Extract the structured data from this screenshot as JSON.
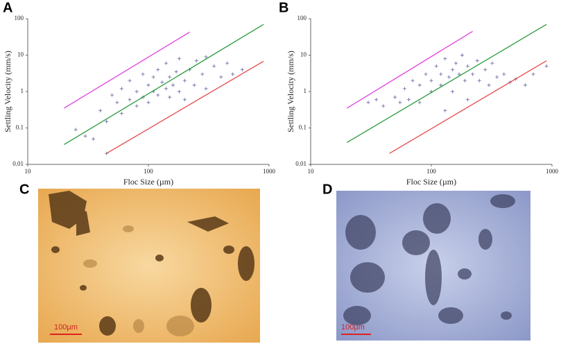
{
  "panels": [
    "A",
    "B",
    "C",
    "D"
  ],
  "scale_bars": [
    "100µm",
    "100µm"
  ],
  "chart_data": [
    {
      "type": "scatter",
      "xlabel": "Floc Size (µm)",
      "ylabel": "Settling Velocity (mm/s)",
      "xlim": [
        10,
        1000
      ],
      "ylim": [
        0.01,
        100
      ],
      "xticks": [
        10,
        100,
        1000
      ],
      "yticks": [
        0.01,
        0.1,
        1,
        10,
        100
      ],
      "log_x": true,
      "log_y": true,
      "marker": "+",
      "series": [
        {
          "color": "#7070a8",
          "x": [
            40,
            45,
            50,
            55,
            60,
            60,
            70,
            70,
            80,
            80,
            90,
            90,
            100,
            100,
            110,
            110,
            120,
            120,
            130,
            140,
            140,
            150,
            150,
            160,
            170,
            180,
            180,
            200,
            200,
            220,
            240,
            250,
            280,
            300,
            300,
            350,
            400,
            450,
            500,
            600,
            35,
            45,
            30,
            25
          ],
          "values": [
            0.3,
            0.15,
            0.8,
            0.5,
            0.25,
            1.2,
            0.6,
            2,
            1,
            0.4,
            3,
            0.7,
            1.5,
            0.5,
            2.5,
            1,
            4,
            0.8,
            1.8,
            6,
            1.2,
            2.5,
            0.7,
            1.5,
            3.5,
            1,
            8,
            2,
            0.6,
            4,
            1.5,
            7,
            3,
            9,
            1.2,
            5,
            2.5,
            6,
            3,
            4,
            0.05,
            0.02,
            0.06,
            0.09
          ]
        }
      ],
      "lines": [
        {
          "color": "#e040e0",
          "x": [
            20,
            220
          ],
          "values": [
            0.35,
            43
          ]
        },
        {
          "color": "#2a9a3a",
          "x": [
            20,
            900
          ],
          "values": [
            0.035,
            70
          ]
        },
        {
          "color": "#e84848",
          "x": [
            45,
            900
          ],
          "values": [
            0.02,
            6.8
          ]
        }
      ]
    },
    {
      "type": "scatter",
      "xlabel": "Floc Size (µm)",
      "ylabel": "Settling Velocity (mm/s)",
      "xlim": [
        10,
        1000
      ],
      "ylim": [
        0.01,
        100
      ],
      "xticks": [
        10,
        100,
        1000
      ],
      "yticks": [
        0.01,
        0.1,
        1,
        10,
        100
      ],
      "log_x": true,
      "log_y": true,
      "marker": "+",
      "series": [
        {
          "color": "#7070a8",
          "x": [
            30,
            35,
            40,
            50,
            55,
            60,
            65,
            70,
            80,
            80,
            90,
            100,
            100,
            110,
            120,
            120,
            130,
            140,
            150,
            150,
            160,
            170,
            180,
            190,
            200,
            220,
            240,
            250,
            280,
            300,
            320,
            350,
            400,
            450,
            500,
            600,
            700,
            900,
            130,
            200
          ],
          "values": [
            0.5,
            0.6,
            0.4,
            0.7,
            0.5,
            1.2,
            0.6,
            2,
            1.5,
            0.5,
            3,
            2,
            1,
            5,
            3,
            1.5,
            8,
            2.5,
            4,
            1,
            6,
            3,
            10,
            2,
            5,
            3,
            7,
            2,
            4,
            1.5,
            6,
            2.5,
            3,
            1.8,
            2.2,
            1.5,
            3,
            5,
            0.3,
            0.6
          ]
        }
      ],
      "lines": [
        {
          "color": "#e040e0",
          "x": [
            20,
            220
          ],
          "values": [
            0.35,
            45
          ]
        },
        {
          "color": "#2a9a3a",
          "x": [
            20,
            900
          ],
          "values": [
            0.04,
            70
          ]
        },
        {
          "color": "#e84848",
          "x": [
            45,
            900
          ],
          "values": [
            0.02,
            7
          ]
        }
      ]
    }
  ]
}
